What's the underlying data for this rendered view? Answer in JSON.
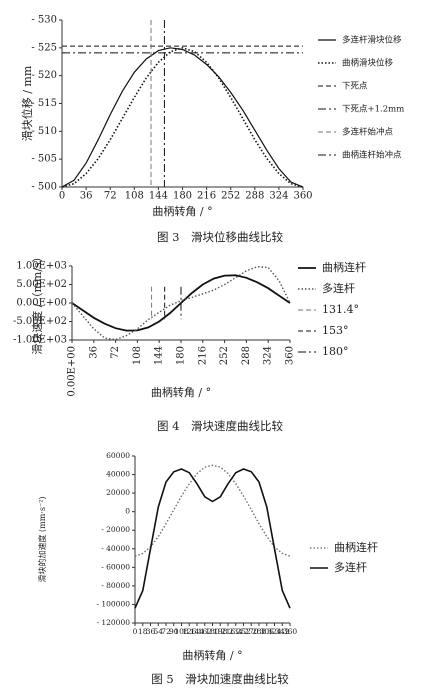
{
  "chart_data": [
    {
      "type": "line",
      "caption": "图 3　滑块位移曲线比较",
      "xlabel": "曲柄转角 / °",
      "ylabel": "滑块位移 / mm",
      "x": [
        0,
        18,
        36,
        54,
        72,
        90,
        108,
        126,
        144,
        162,
        180,
        198,
        216,
        234,
        252,
        270,
        288,
        306,
        324,
        342,
        360
      ],
      "xlim": [
        0,
        360
      ],
      "xticks": [
        0,
        36,
        72,
        108,
        144,
        180,
        216,
        252,
        288,
        324,
        360
      ],
      "ylim": [
        -500,
        -530
      ],
      "yticks": [
        {
          "value": -500,
          "label": "- 500"
        },
        {
          "value": -505,
          "label": "- 505"
        },
        {
          "value": -510,
          "label": "- 510"
        },
        {
          "value": -515,
          "label": "- 515"
        },
        {
          "value": -520,
          "label": "- 520"
        },
        {
          "value": -525,
          "label": "- 525"
        },
        {
          "value": -530,
          "label": "- 530"
        }
      ],
      "series": [
        {
          "name": "多连杆滑块位移",
          "color": "#111111",
          "style": "solid",
          "width": 1.2,
          "values": [
            -500,
            -501.2,
            -504.3,
            -508.5,
            -513,
            -517.2,
            -520.6,
            -523,
            -524.5,
            -525,
            -524.7,
            -523.7,
            -522,
            -519.8,
            -517,
            -513.8,
            -510.2,
            -506.6,
            -503.3,
            -500.9,
            -500
          ]
        },
        {
          "name": "曲柄滑块位移",
          "color": "#111111",
          "style": "dotted",
          "width": 1.6,
          "values": [
            -500,
            -500.6,
            -502.4,
            -505.1,
            -508.5,
            -512.3,
            -516.1,
            -519.6,
            -522.4,
            -524.3,
            -525,
            -524.3,
            -522.4,
            -519.6,
            -516.1,
            -512.3,
            -508.5,
            -505.1,
            -502.4,
            -500.6,
            -500
          ]
        }
      ],
      "reference_lines": [
        {
          "name": "下死点",
          "axis": "y",
          "value": -525.3,
          "color": "#111111",
          "style": "dashed"
        },
        {
          "name": "下死点+1.2mm",
          "axis": "y",
          "value": -524.1,
          "color": "#111111",
          "style": "dashdot"
        },
        {
          "name": "多连杆始冲点",
          "axis": "x",
          "value": 133,
          "color": "#777777",
          "style": "dashed"
        },
        {
          "name": "曲柄连杆始冲点",
          "axis": "x",
          "value": 153,
          "color": "#111111",
          "style": "dashdot"
        }
      ]
    },
    {
      "type": "line",
      "caption": "图 4　滑块速度曲线比较",
      "xlabel": "曲柄转角 / °",
      "ylabel": "滑块速度 /（mm/s）",
      "x": [
        0,
        18,
        36,
        54,
        72,
        90,
        108,
        126,
        144,
        162,
        180,
        198,
        216,
        234,
        252,
        270,
        288,
        306,
        324,
        342,
        360
      ],
      "xlim": [
        0,
        360
      ],
      "xticks": [
        {
          "value": 0,
          "label": "0.00E+00"
        },
        36,
        72,
        108,
        144,
        180,
        216,
        252,
        288,
        324,
        360
      ],
      "ylim": [
        -1000,
        1000
      ],
      "yticks": [
        {
          "value": 1000,
          "label": "1.00E+03"
        },
        {
          "value": 500,
          "label": "5.00E+02"
        },
        {
          "value": 0,
          "label": "0.00E+00"
        },
        {
          "value": -500,
          "label": "-5.00E+02"
        },
        {
          "value": -1000,
          "label": "-1.00E+03"
        }
      ],
      "series": [
        {
          "name": "曲柄连杆",
          "color": "#111111",
          "style": "solid",
          "width": 1.8,
          "values": [
            0,
            -200,
            -400,
            -560,
            -680,
            -745,
            -740,
            -660,
            -500,
            -270,
            0,
            270,
            500,
            660,
            740,
            750,
            680,
            560,
            400,
            200,
            0
          ]
        },
        {
          "name": "多连杆",
          "color": "#555555",
          "style": "dotted",
          "width": 1.4,
          "values": [
            0,
            -350,
            -700,
            -950,
            -990,
            -880,
            -700,
            -450,
            -250,
            -60,
            60,
            150,
            250,
            350,
            500,
            680,
            870,
            980,
            960,
            600,
            0
          ]
        }
      ],
      "reference_lines": [
        {
          "name": "131.4°",
          "axis": "x",
          "value": 131.4,
          "color": "#777777",
          "style": "dashed"
        },
        {
          "name": "153°",
          "axis": "x",
          "value": 153,
          "color": "#111111",
          "style": "dashed"
        },
        {
          "name": "180°",
          "axis": "x",
          "value": 180,
          "color": "#111111",
          "style": "dashdot"
        }
      ]
    },
    {
      "type": "line",
      "caption": "图 5　滑块加速度曲线比较",
      "xlabel": "曲柄转角 / °",
      "ylabel": "滑块的加速度 (mm·s⁻²)",
      "x": [
        0,
        18,
        36,
        54,
        72,
        90,
        108,
        126,
        144,
        162,
        180,
        198,
        216,
        234,
        252,
        270,
        288,
        306,
        324,
        342,
        360
      ],
      "xlim": [
        0,
        360
      ],
      "xticks": [
        0,
        18,
        36,
        54,
        72,
        90,
        108,
        126,
        144,
        162,
        180,
        198,
        216,
        234,
        252,
        270,
        288,
        306,
        324,
        342,
        360
      ],
      "ylim": [
        -120000,
        60000
      ],
      "yticks": [
        60000,
        40000,
        20000,
        0,
        {
          "value": -20000,
          "label": "- 20000"
        },
        {
          "value": -40000,
          "label": "- 40000"
        },
        {
          "value": -60000,
          "label": "- 60000"
        },
        {
          "value": -80000,
          "label": "- 80000"
        },
        {
          "value": -100000,
          "label": "- 100000"
        },
        {
          "value": -120000,
          "label": "- 120000"
        }
      ],
      "series": [
        {
          "name": "曲柄连杆",
          "color": "#666666",
          "style": "dotted",
          "width": 1.3,
          "values": [
            -48000,
            -45000,
            -38000,
            -27000,
            -13000,
            2000,
            17000,
            30000,
            41000,
            48000,
            50000,
            48000,
            41000,
            30000,
            17000,
            2000,
            -13000,
            -27000,
            -38000,
            -45000,
            -48000
          ]
        },
        {
          "name": "多连杆",
          "color": "#111111",
          "style": "solid",
          "width": 1.6,
          "values": [
            -104000,
            -85000,
            -40000,
            5000,
            32000,
            43000,
            46000,
            42000,
            30000,
            16000,
            11000,
            16000,
            30000,
            42000,
            46000,
            43000,
            32000,
            5000,
            -40000,
            -85000,
            -104000
          ]
        }
      ]
    }
  ]
}
